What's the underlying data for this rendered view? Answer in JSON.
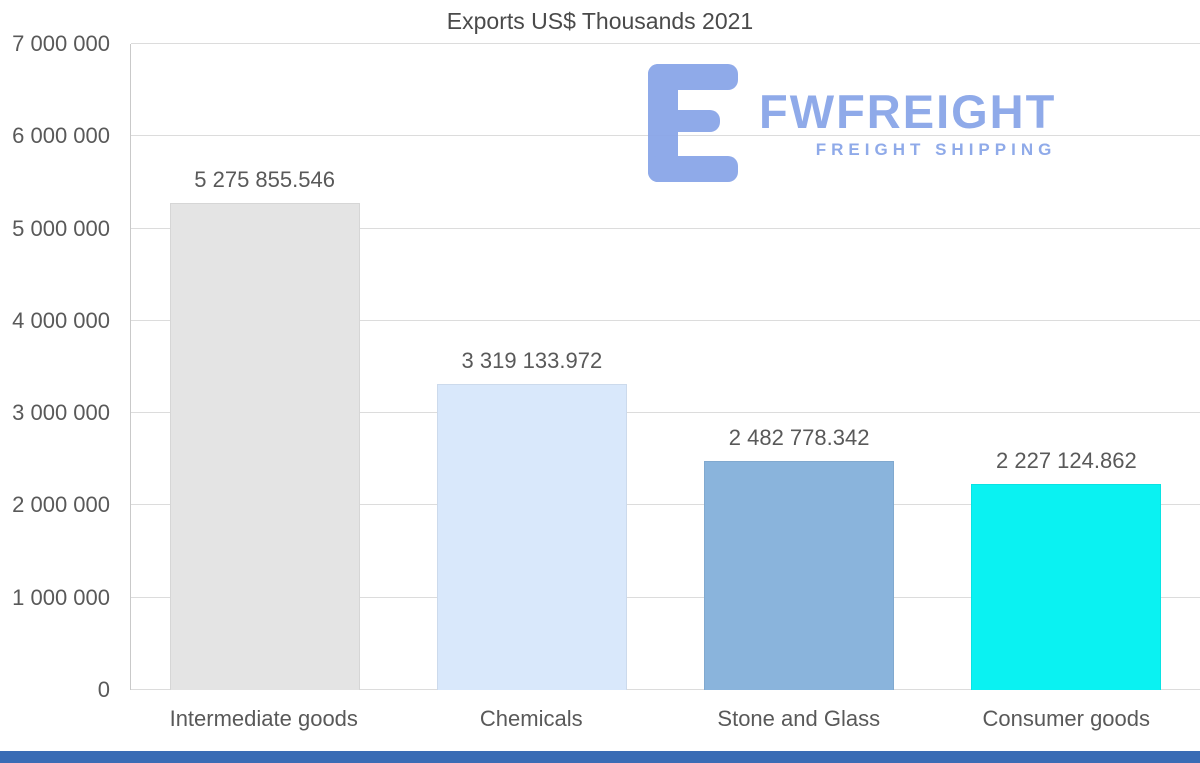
{
  "chart_data": {
    "type": "bar",
    "title": "Exports US$ Thousands 2021",
    "categories": [
      "Intermediate goods",
      "Chemicals",
      "Stone and Glass",
      "Consumer goods"
    ],
    "values": [
      5275855.546,
      3319133.972,
      2482778.342,
      2227124.862
    ],
    "value_labels": [
      "5 275 855.546",
      "3 319 133.972",
      "2 482 778.342",
      "2 227 124.862"
    ],
    "bar_colors": [
      "#e4e4e4",
      "#d9e8fb",
      "#8ab4dc",
      "#0af2f2"
    ],
    "xlabel": "",
    "ylabel": "",
    "ylim": [
      0,
      7000000
    ],
    "y_ticks": [
      "0",
      "1 000 000",
      "2 000 000",
      "3 000 000",
      "4 000 000",
      "5 000 000",
      "6 000 000",
      "7 000 000"
    ],
    "grid": true,
    "legend": false
  },
  "logo": {
    "name": "FWFREIGHT",
    "tagline": "FREIGHT SHIPPING",
    "color": "#8aa6e8"
  },
  "footer": {
    "color": "#3a6cb5"
  }
}
